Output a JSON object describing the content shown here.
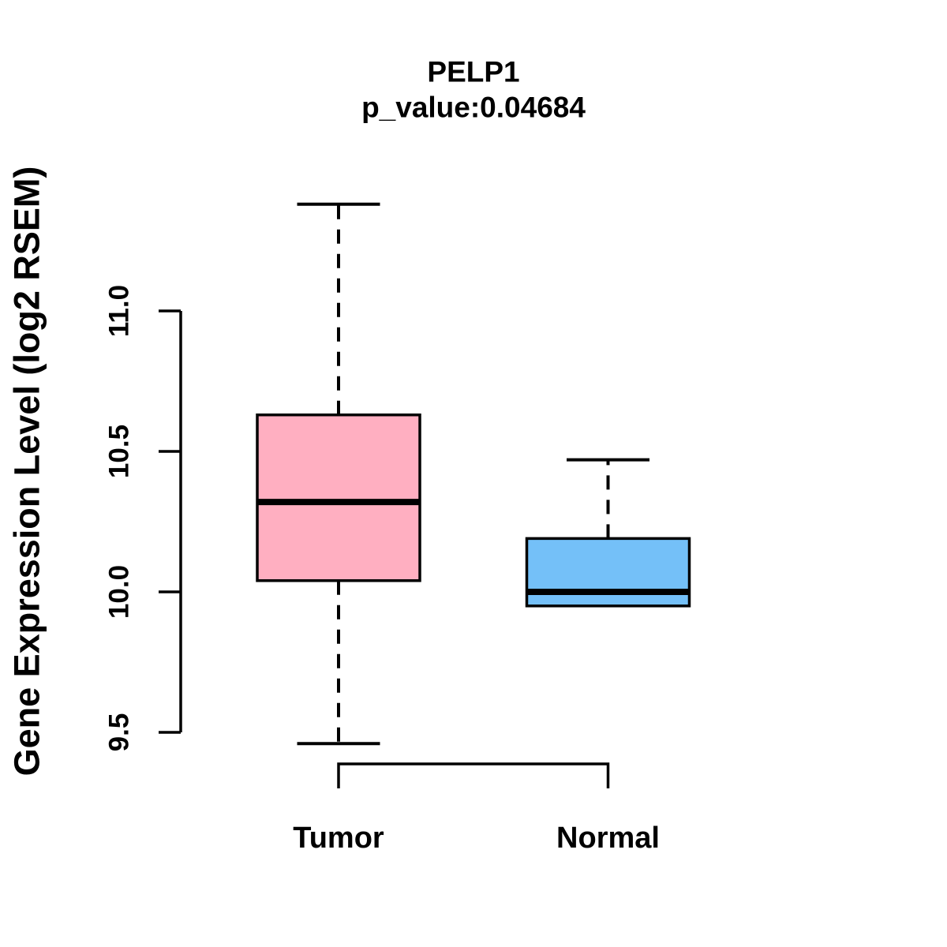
{
  "chart_data": {
    "type": "boxplot",
    "title": "PELP1",
    "subtitle": "p_value:0.04684",
    "ylabel": "Gene Expression Level (log2 RSEM)",
    "xlabel": "",
    "categories": [
      "Tumor",
      "Normal"
    ],
    "ytick_labels": [
      "9.5",
      "10.0",
      "10.5",
      "11.0"
    ],
    "yticks": [
      9.5,
      10.0,
      10.5,
      11.0
    ],
    "axis_range": [
      9.5,
      11.0
    ],
    "grid": false,
    "legend": "none",
    "boxes": [
      {
        "category": "Tumor",
        "fill_color": "#FFAFC1",
        "whisker_high": 11.38,
        "q3": 10.63,
        "median": 10.32,
        "q1": 10.04,
        "whisker_low": 9.46
      },
      {
        "category": "Normal",
        "fill_color": "#74C0F8",
        "whisker_high": 10.47,
        "q3": 10.19,
        "median": 10.0,
        "q1": 9.95,
        "whisker_low": 9.95
      }
    ],
    "colors": {
      "stroke": "#000000",
      "text": "#000000",
      "background": "#FFFFFF"
    }
  }
}
